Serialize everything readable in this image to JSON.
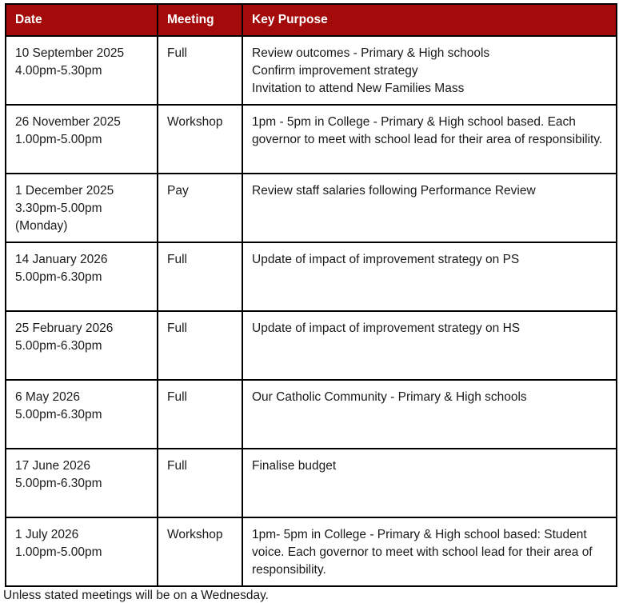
{
  "colors": {
    "header_bg": "#A40A0A",
    "header_text": "#FFFFFF",
    "border": "#000000",
    "body_text": "#1A1A1A",
    "page_bg": "#FFFFFF"
  },
  "table": {
    "headers": [
      "Date",
      "Meeting",
      "Key Purpose"
    ],
    "rows": [
      {
        "date_lines": [
          "10 September 2025",
          "4.00pm-5.30pm"
        ],
        "meeting": "Full",
        "purpose_lines": [
          "Review outcomes - Primary & High schools",
          "Confirm improvement strategy",
          "Invitation to attend New Families Mass"
        ]
      },
      {
        "date_lines": [
          "26 November 2025",
          "1.00pm-5.00pm"
        ],
        "meeting": "Workshop",
        "purpose_lines": [
          "1pm - 5pm in College - Primary & High school based. Each governor to meet with school lead for their area of responsibility."
        ]
      },
      {
        "date_lines": [
          "1 December 2025",
          "3.30pm-5.00pm",
          "(Monday)"
        ],
        "meeting": "Pay",
        "purpose_lines": [
          "Review staff salaries following Performance Review"
        ]
      },
      {
        "date_lines": [
          "14 January 2026",
          "5.00pm-6.30pm"
        ],
        "meeting": "Full",
        "purpose_lines": [
          "Update of impact of improvement strategy on PS"
        ]
      },
      {
        "date_lines": [
          "25 February 2026",
          "5.00pm-6.30pm"
        ],
        "meeting": "Full",
        "purpose_lines": [
          "Update of impact of improvement strategy on HS"
        ]
      },
      {
        "date_lines": [
          "6 May 2026",
          "5.00pm-6.30pm"
        ],
        "meeting": "Full",
        "purpose_lines": [
          "Our Catholic Community - Primary & High schools"
        ]
      },
      {
        "date_lines": [
          "17 June 2026",
          "5.00pm-6.30pm"
        ],
        "meeting": "Full",
        "purpose_lines": [
          "Finalise budget"
        ]
      },
      {
        "date_lines": [
          "1 July 2026",
          "1.00pm-5.00pm"
        ],
        "meeting": "Workshop",
        "purpose_lines": [
          "1pm- 5pm in College - Primary & High school based: Student voice. Each governor to meet with school lead for their area of responsibility."
        ]
      }
    ]
  },
  "footer_note": "Unless stated meetings will be on a Wednesday."
}
